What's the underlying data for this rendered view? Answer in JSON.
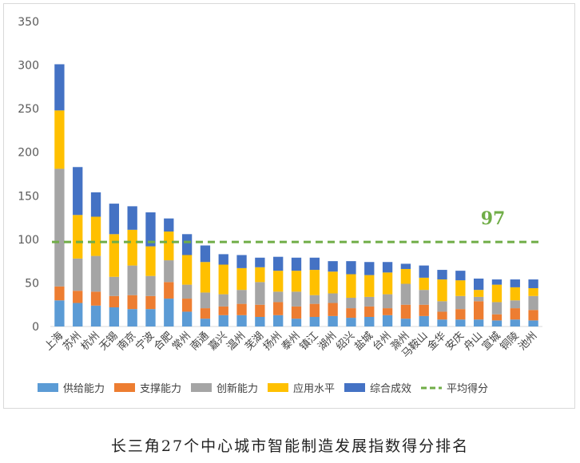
{
  "caption": "长三角27个中心城市智能制造发展指数得分排名",
  "chart_data": {
    "type": "bar",
    "stacked": true,
    "categories": [
      "上海",
      "苏州",
      "杭州",
      "无锡",
      "南京",
      "宁波",
      "合肥",
      "常州",
      "南通",
      "嘉兴",
      "温州",
      "芜湖",
      "扬州",
      "泰州",
      "镇江",
      "湖州",
      "绍兴",
      "盐城",
      "台州",
      "滁州",
      "马鞍山",
      "金华",
      "安庆",
      "舟山",
      "宣城",
      "铜陵",
      "池州"
    ],
    "series": [
      {
        "name": "供给能力",
        "color": "#5B9BD5",
        "values": [
          30,
          27,
          24,
          22,
          20,
          20,
          32,
          17,
          9,
          13,
          13,
          11,
          13,
          9,
          11,
          12,
          10,
          11,
          13,
          9,
          12,
          8,
          8,
          8,
          7,
          8,
          7
        ]
      },
      {
        "name": "支撑能力",
        "color": "#ED7D31",
        "values": [
          16,
          14,
          16,
          13,
          16,
          15,
          19,
          15,
          12,
          10,
          13,
          14,
          15,
          14,
          15,
          15,
          11,
          12,
          8,
          16,
          13,
          9,
          12,
          21,
          7,
          13,
          12
        ]
      },
      {
        "name": "创新能力",
        "color": "#A5A5A5",
        "values": [
          135,
          37,
          41,
          22,
          34,
          23,
          25,
          16,
          18,
          14,
          16,
          26,
          12,
          17,
          10,
          11,
          12,
          11,
          16,
          24,
          17,
          12,
          15,
          5,
          14,
          9,
          16
        ]
      },
      {
        "name": "应用水平",
        "color": "#FFC000",
        "values": [
          67,
          50,
          45,
          49,
          41,
          34,
          33,
          34,
          35,
          34,
          25,
          17,
          24,
          24,
          29,
          25,
          27,
          25,
          25,
          17,
          14,
          25,
          18,
          8,
          20,
          15,
          9
        ]
      },
      {
        "name": "综合成效",
        "color": "#4472C4",
        "values": [
          53,
          55,
          28,
          35,
          27,
          39,
          15,
          24,
          19,
          12,
          15,
          11,
          16,
          15,
          14,
          12,
          15,
          15,
          12,
          6,
          14,
          11,
          11,
          13,
          6,
          9,
          10
        ]
      }
    ],
    "average": {
      "name": "平均得分",
      "value": 97,
      "label": "97",
      "color": "#70AD47"
    },
    "yticks": [
      0,
      50,
      100,
      150,
      200,
      250,
      300,
      350
    ],
    "ylim": [
      0,
      350
    ],
    "grid": false,
    "legend": "bottom"
  }
}
